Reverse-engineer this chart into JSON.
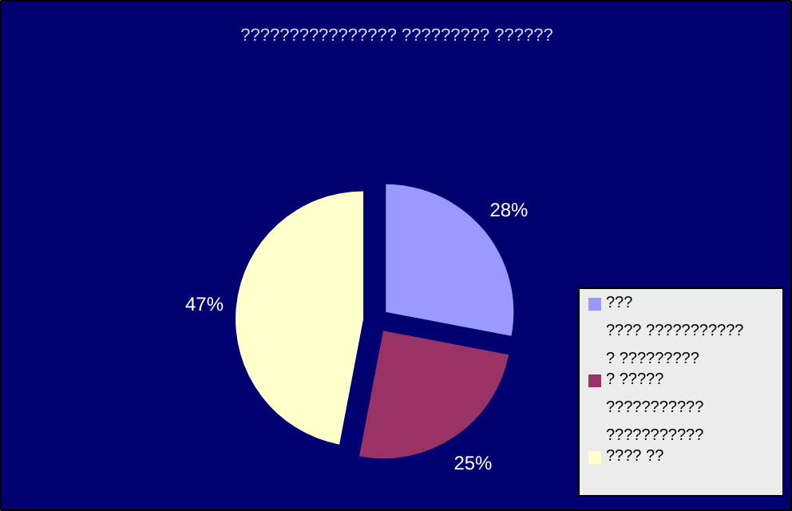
{
  "chart_data": {
    "type": "pie",
    "title": "???????????????? ????????? ??????",
    "categories": [
      "???\n???? ???????????\n? ?????????",
      "? ?????\n???????????\n???????????",
      "???? ??"
    ],
    "values": [
      28,
      25,
      47
    ],
    "colors": [
      "#9999ff",
      "#993366",
      "#ffffcc"
    ],
    "value_labels": [
      "28%",
      "25%",
      "47%"
    ],
    "legend": "right"
  }
}
